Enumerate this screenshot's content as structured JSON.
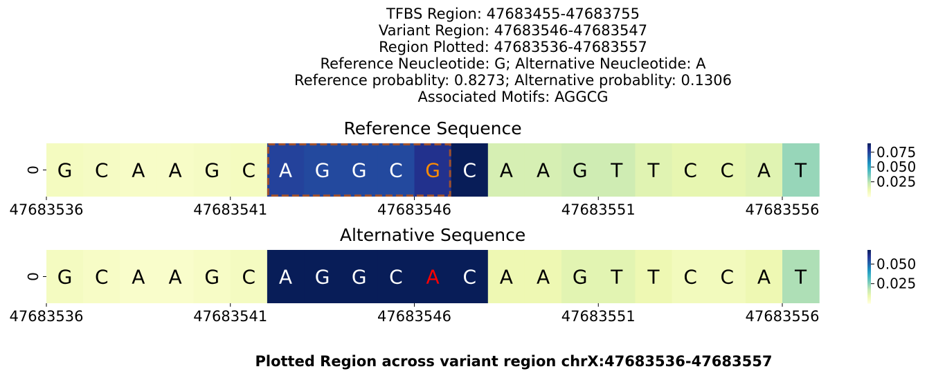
{
  "header": {
    "lines": [
      "TFBS Region: 47683455-47683755",
      "Variant Region: 47683546-47683547",
      "Region Plotted: 47683536-47683557",
      "Reference Neucleotide: G; Alternative Neucleotide: A",
      "Reference probablity: 0.8273; Alternative probablity: 0.1306",
      "Associated Motifs: AGGCG"
    ]
  },
  "footer": {
    "caption": "Plotted Region across variant region chrX:47683536-47683557"
  },
  "chart_data": [
    {
      "type": "heatmap",
      "title": "Reference Sequence",
      "ytick": "0",
      "x_positions": [
        47683536,
        47683537,
        47683538,
        47683539,
        47683540,
        47683541,
        47683542,
        47683543,
        47683544,
        47683545,
        47683546,
        47683547,
        47683548,
        47683549,
        47683550,
        47683551,
        47683552,
        47683553,
        47683554,
        47683555,
        47683556
      ],
      "xticks": [
        "47683536",
        "47683541",
        "47683546",
        "47683551",
        "47683556"
      ],
      "bases": [
        "G",
        "C",
        "A",
        "A",
        "G",
        "C",
        "A",
        "G",
        "G",
        "C",
        "G",
        "C",
        "A",
        "A",
        "G",
        "T",
        "T",
        "C",
        "C",
        "A",
        "T"
      ],
      "values": [
        0.007,
        0.006,
        0.005,
        0.005,
        0.006,
        0.007,
        0.075,
        0.073,
        0.073,
        0.073,
        0.08,
        0.09,
        0.018,
        0.018,
        0.02,
        0.02,
        0.015,
        0.013,
        0.013,
        0.015,
        0.03
      ],
      "highlighted_base_index": 10,
      "highlighted_base_color": "#ff8c00",
      "motif_box": {
        "start_index": 6,
        "end_index": 10,
        "color": "#a0522d"
      },
      "colorbar": {
        "vmin": 0.0,
        "vmax": 0.09,
        "ticks": [
          0.025,
          0.05,
          0.075
        ],
        "tick_labels": [
          "0.025",
          "0.050",
          "0.075"
        ],
        "colormap": "YlGnBu"
      }
    },
    {
      "type": "heatmap",
      "title": "Alternative Sequence",
      "ytick": "0",
      "x_positions": [
        47683536,
        47683537,
        47683538,
        47683539,
        47683540,
        47683541,
        47683542,
        47683543,
        47683544,
        47683545,
        47683546,
        47683547,
        47683548,
        47683549,
        47683550,
        47683551,
        47683552,
        47683553,
        47683554,
        47683555,
        47683556
      ],
      "xticks": [
        "47683536",
        "47683541",
        "47683546",
        "47683551",
        "47683556"
      ],
      "bases": [
        "G",
        "C",
        "A",
        "A",
        "G",
        "C",
        "A",
        "G",
        "G",
        "C",
        "A",
        "C",
        "A",
        "A",
        "G",
        "T",
        "T",
        "C",
        "C",
        "A",
        "T"
      ],
      "values": [
        0.005,
        0.004,
        0.003,
        0.003,
        0.004,
        0.005,
        0.068,
        0.068,
        0.068,
        0.068,
        0.068,
        0.068,
        0.008,
        0.008,
        0.011,
        0.011,
        0.008,
        0.006,
        0.006,
        0.008,
        0.02
      ],
      "highlighted_base_index": 10,
      "highlighted_base_color": "#ff0000",
      "colorbar": {
        "vmin": 0.0,
        "vmax": 0.068,
        "ticks": [
          0.025,
          0.05
        ],
        "tick_labels": [
          "0.025",
          "0.050"
        ],
        "colormap": "YlGnBu"
      }
    }
  ]
}
